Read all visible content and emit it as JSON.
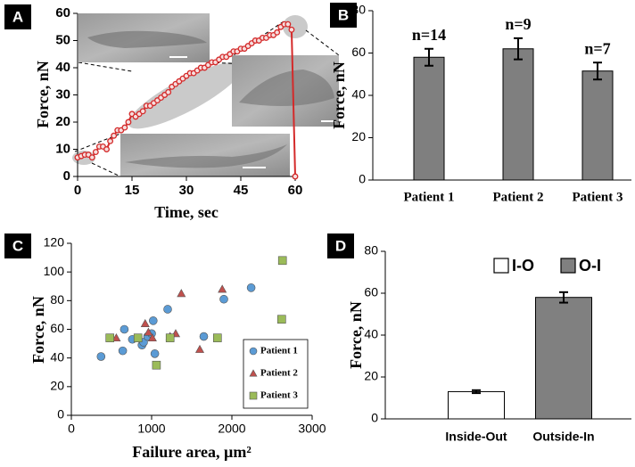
{
  "chart_data": [
    {
      "type": "line",
      "panel": "A",
      "xlabel": "Time, sec",
      "ylabel": "Force, nN",
      "color": "#d42a2a",
      "x": [
        0,
        1,
        2,
        3,
        4,
        5,
        6,
        7,
        8,
        9,
        10,
        11,
        12,
        13,
        14,
        15,
        16,
        17,
        18,
        19,
        20,
        21,
        22,
        23,
        24,
        25,
        26,
        27,
        28,
        29,
        30,
        31,
        32,
        33,
        34,
        35,
        36,
        37,
        38,
        39,
        40,
        41,
        42,
        43,
        44,
        45,
        46,
        47,
        48,
        49,
        50,
        51,
        52,
        53,
        54,
        55,
        56,
        57,
        58,
        59,
        60
      ],
      "values": [
        7,
        7.5,
        8,
        8,
        7,
        9,
        11,
        11,
        10,
        13,
        15,
        17,
        17,
        18,
        20,
        23,
        22,
        23,
        24,
        26,
        26,
        27,
        28,
        29,
        30,
        31,
        33,
        34,
        35,
        36,
        37,
        38,
        38,
        39,
        40,
        40,
        41,
        42,
        42,
        43,
        44,
        44,
        45,
        46,
        46,
        47,
        47,
        48,
        49,
        50,
        50,
        51,
        51,
        52,
        52,
        53,
        55,
        56,
        56,
        54,
        0
      ],
      "xlim": [
        0,
        60
      ],
      "xticks": [
        0,
        15,
        30,
        45,
        60
      ],
      "ylim": [
        0,
        60
      ],
      "yticks": [
        0,
        10,
        20,
        30,
        40,
        50,
        60
      ]
    },
    {
      "type": "bar",
      "panel": "B",
      "ylabel": "Force, nN",
      "categories": [
        "Patient 1",
        "Patient 2",
        "Patient 3"
      ],
      "values": [
        58,
        62,
        51.5
      ],
      "errors": [
        4,
        5,
        4
      ],
      "annotations": [
        "n=14",
        "n=9",
        "n=7"
      ],
      "color": "#7f7f7f",
      "ylim": [
        0,
        80
      ],
      "yticks": [
        0,
        20,
        40,
        60,
        80
      ]
    },
    {
      "type": "scatter",
      "panel": "C",
      "xlabel": "Failure area, µm²",
      "ylabel": "Force, nN",
      "legend": "lower right",
      "series": [
        {
          "name": "Patient 1",
          "color": "#5b9bd5",
          "marker": "circle",
          "x": [
            370,
            640,
            660,
            760,
            880,
            900,
            950,
            1000,
            1020,
            1040,
            1200,
            1650,
            1900,
            2240
          ],
          "values": [
            41,
            45,
            60,
            53,
            49,
            51,
            55,
            57,
            66,
            43,
            74,
            55,
            81,
            89
          ]
        },
        {
          "name": "Patient 2",
          "color": "#c0504d",
          "marker": "triangle",
          "x": [
            560,
            920,
            960,
            1010,
            1230,
            1300,
            1370,
            1600,
            1880
          ],
          "values": [
            54,
            64,
            58,
            54,
            55,
            57,
            85,
            46,
            88
          ]
        },
        {
          "name": "Patient 3",
          "color": "#9bbb59",
          "marker": "square",
          "x": [
            480,
            830,
            1060,
            1230,
            1820,
            2630,
            2620
          ],
          "values": [
            54,
            54,
            35,
            54,
            54,
            108,
            67
          ]
        }
      ],
      "xlim": [
        0,
        3000
      ],
      "xticks": [
        0,
        1000,
        2000,
        3000
      ],
      "ylim": [
        0,
        120
      ],
      "yticks": [
        0,
        20,
        40,
        60,
        80,
        100,
        120
      ]
    },
    {
      "type": "bar",
      "panel": "D",
      "ylabel": "Force, nN",
      "legend": "upper center",
      "categories": [
        "Inside-Out",
        "Outside-In"
      ],
      "series": [
        {
          "name": "I-O",
          "color": "#ffffff",
          "values": [
            13,
            null
          ],
          "errors": [
            0.7,
            null
          ]
        },
        {
          "name": "O-I",
          "color": "#808080",
          "values": [
            null,
            58
          ],
          "errors": [
            null,
            2.5
          ]
        }
      ],
      "ylim": [
        0,
        80
      ],
      "yticks": [
        0,
        20,
        40,
        60,
        80
      ]
    }
  ]
}
